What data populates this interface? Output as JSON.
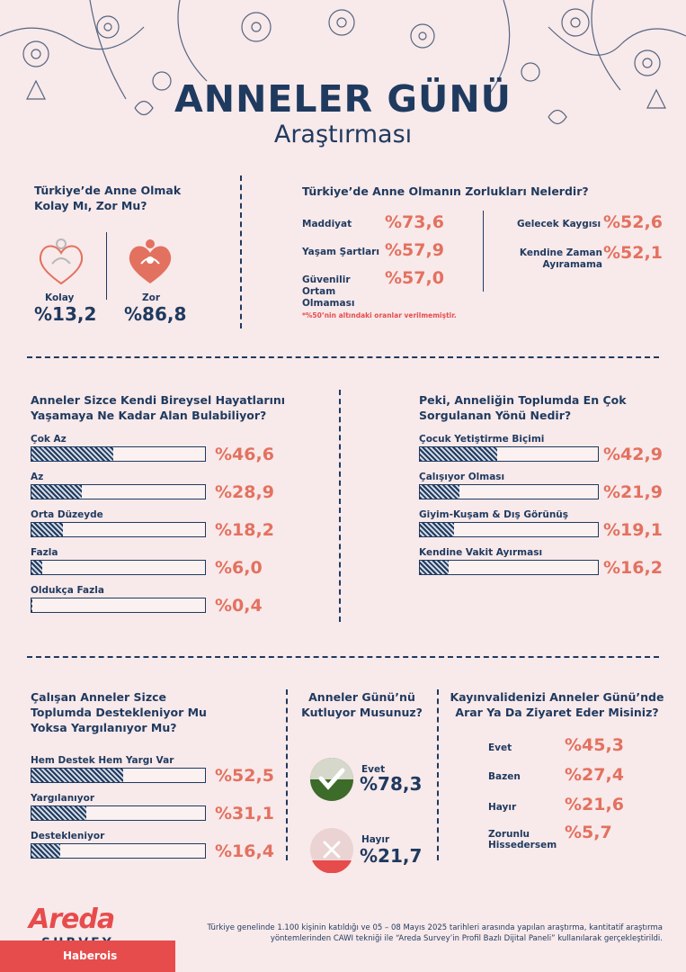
{
  "header": {
    "title": "ANNELER GÜNÜ",
    "subtitle": "Araştırması"
  },
  "colors": {
    "navy": "#1f3a5f",
    "coral": "#e3715f",
    "background": "#f8e9ea",
    "red": "#e74c4c",
    "green": "#3c6b2a"
  },
  "chart_data": [
    {
      "type": "table",
      "title": "Türkiye’de Anne Olmak Kolay Mı, Zor Mu?",
      "categories": [
        "Kolay",
        "Zor"
      ],
      "values": [
        13.2,
        86.8
      ],
      "display": [
        "%13,2",
        "%86,8"
      ],
      "icons": [
        "mother-child-outline-icon",
        "mother-child-filled-icon"
      ]
    },
    {
      "type": "table",
      "title": "Türkiye’de Anne Olmanın Zorlukları Nelerdir?",
      "categories": [
        "Maddiyat",
        "Yaşam Şartları",
        "Güvenilir Ortam Olmaması",
        "Gelecek Kaygısı",
        "Kendine Zaman Ayıramama"
      ],
      "values": [
        73.6,
        57.9,
        57.0,
        52.6,
        52.1
      ],
      "display": [
        "%73,6",
        "%57,9",
        "%57,0",
        "%52,6",
        "%52,1"
      ],
      "note": "*%50’nin altındaki oranlar verilmemiştir."
    },
    {
      "type": "bar",
      "title": "Anneler Sizce Kendi Bireysel Hayatlarını Yaşamaya Ne Kadar Alan Bulabiliyor?",
      "categories": [
        "Çok Az",
        "Az",
        "Orta Düzeyde",
        "Fazla",
        "Oldukça Fazla"
      ],
      "values": [
        46.6,
        28.9,
        18.2,
        6.0,
        0.4
      ],
      "display": [
        "%46,6",
        "%28,9",
        "%18,2",
        "%6,0",
        "%0,4"
      ]
    },
    {
      "type": "bar",
      "title": "Peki, Anneliğin Toplumda En Çok Sorgulanan Yönü Nedir?",
      "categories": [
        "Çocuk Yetiştirme Biçimi",
        "Çalışıyor Olması",
        "Giyim-Kuşam & Dış Görünüş",
        "Kendine Vakit Ayırması"
      ],
      "values": [
        42.9,
        21.9,
        19.1,
        16.2
      ],
      "display": [
        "%42,9",
        "%21,9",
        "%19,1",
        "%16,2"
      ]
    },
    {
      "type": "bar",
      "title": "Çalışan Anneler Sizce Toplumda Destekleniyor Mu Yoksa Yargılanıyor Mu?",
      "categories": [
        "Hem Destek Hem Yargı Var",
        "Yargılanıyor",
        "Destekleniyor"
      ],
      "values": [
        52.5,
        31.1,
        16.4
      ],
      "display": [
        "%52,5",
        "%31,1",
        "%16,4"
      ]
    },
    {
      "type": "table",
      "title": "Anneler Günü’nü Kutluyor Musunuz?",
      "categories": [
        "Evet",
        "Hayır"
      ],
      "values": [
        78.3,
        21.7
      ],
      "display": [
        "%78,3",
        "%21,7"
      ],
      "icons": [
        "check-icon",
        "cross-icon"
      ]
    },
    {
      "type": "table",
      "title": "Kayınvalidenizi Anneler Günü’nde Arar Ya Da Ziyaret Eder Misiniz?",
      "categories": [
        "Evet",
        "Bazen",
        "Hayır",
        "Zorunlu Hissedersem"
      ],
      "values": [
        45.3,
        27.4,
        21.6,
        5.7
      ],
      "display": [
        "%45,3",
        "%27,4",
        "%21,6",
        "%5,7"
      ]
    }
  ],
  "footer": {
    "text": "Türkiye genelinde 1.100 kişinin katıldığı ve 05 – 08 Mayıs 2025 tarihleri arasında yapılan araştırma, kantitatif araştırma yöntemlerinden CAWI tekniği ile “Areda Survey’in Profil Bazlı Dijital Paneli” kullanılarak gerçekleştirildi.",
    "logo_main": "Areda",
    "logo_sub": "SURVEY",
    "source_badge": "Haberois"
  }
}
